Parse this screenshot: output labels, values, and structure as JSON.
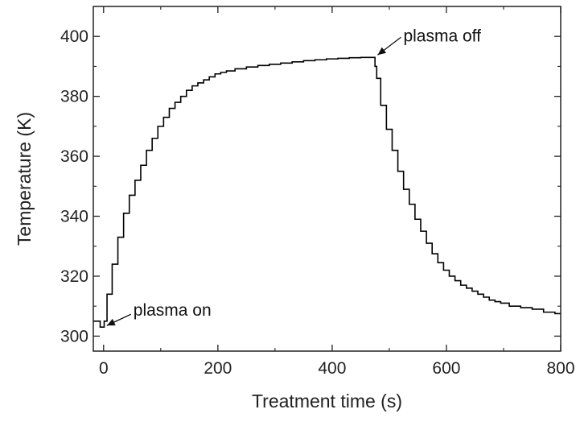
{
  "chart_data": {
    "type": "line",
    "title": "",
    "xlabel": "Treatment time (s)",
    "ylabel": "Temperature (K)",
    "xlim": [
      -18,
      800
    ],
    "ylim": [
      295,
      410
    ],
    "grid": false,
    "x_ticks": [
      0,
      200,
      400,
      600,
      800
    ],
    "y_ticks": [
      300,
      320,
      340,
      360,
      380,
      400
    ],
    "series": [
      {
        "color": "#000000",
        "x": [
          -18,
          -8,
          -4,
          0,
          2,
          10,
          20,
          30,
          40,
          50,
          60,
          70,
          80,
          90,
          100,
          110,
          120,
          130,
          140,
          150,
          160,
          170,
          180,
          190,
          200,
          210,
          220,
          240,
          260,
          280,
          300,
          320,
          340,
          360,
          380,
          400,
          420,
          440,
          460,
          474,
          476,
          480,
          490,
          500,
          510,
          520,
          530,
          540,
          550,
          560,
          570,
          580,
          590,
          600,
          610,
          620,
          630,
          640,
          650,
          660,
          670,
          680,
          690,
          700,
          720,
          740,
          760,
          780,
          800
        ],
        "y": [
          305,
          305,
          303,
          303,
          305,
          314,
          324,
          333,
          341,
          347,
          352,
          357,
          362,
          366,
          370,
          373,
          376,
          378,
          380,
          382,
          383.5,
          384.5,
          385.5,
          386.5,
          387.5,
          388,
          388.5,
          389.2,
          389.8,
          390.3,
          390.7,
          391.1,
          391.5,
          391.9,
          392.2,
          392.5,
          392.7,
          392.9,
          393,
          393,
          390,
          386,
          377,
          369,
          362,
          355,
          349,
          344,
          339,
          335,
          331,
          327.5,
          324.5,
          322,
          320,
          318.5,
          317,
          316,
          315,
          314,
          313,
          312,
          311.5,
          311,
          310,
          309.5,
          309,
          308,
          307.5
        ]
      }
    ],
    "annotations": [
      {
        "text": "plasma on",
        "x": 0,
        "y": 303
      },
      {
        "text": "plasma off",
        "x": 474,
        "y": 393
      }
    ]
  }
}
